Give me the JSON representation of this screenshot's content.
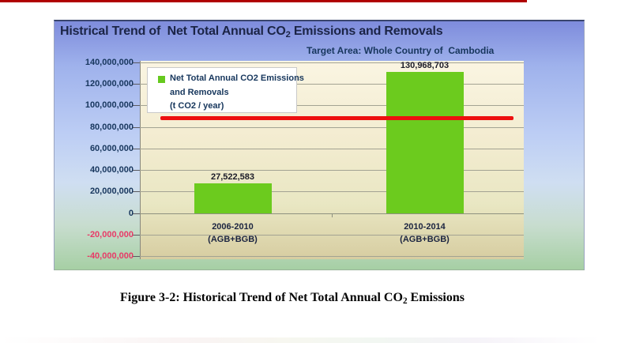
{
  "page": {
    "top_strip_color": "#b00000",
    "caption": {
      "pre": "Figure 3-2: Historical Trend of Net Total Annual CO",
      "sub": "2",
      "post": " Emissions"
    }
  },
  "chart": {
    "title": {
      "pre": "Histrical Trend of  Net Total Annual CO",
      "sub": "2",
      "post": " Emissions and Removals"
    },
    "legend": {
      "lines": [
        "Net Total Annual CO2 Emissions",
        "and Removals",
        "(t CO2 / year)"
      ],
      "swatch_color": "#66c91e"
    },
    "colors": {
      "bar": "#6ccb1e",
      "reference_line": "#ed0f0f",
      "positive_tick_label": "#17365d",
      "negative_tick_label": "#e83a67",
      "title_text": "#1b2446",
      "top_strip": "#b00000"
    }
  },
  "chart_data": {
    "type": "bar",
    "title": "Histrical Trend of  Net Total Annual CO2 Emissions and Removals",
    "subtitle": "Target Area: Whole Country of  Cambodia",
    "series_name": "Net Total Annual CO2 Emissions and Removals (t CO2 / year)",
    "categories": [
      {
        "line1": "2006-2010",
        "line2": "(AGB+BGB)"
      },
      {
        "line1": "2010-2014",
        "line2": "(AGB+BGB)"
      }
    ],
    "values": [
      27522583,
      130968703
    ],
    "value_labels": [
      "27,522,583",
      "130,968,703"
    ],
    "ylim": [
      -40000000,
      140000000
    ],
    "ytick_step": 20000000,
    "yticks": [
      {
        "value": 140000000,
        "label": "140,000,000"
      },
      {
        "value": 120000000,
        "label": "120,000,000"
      },
      {
        "value": 100000000,
        "label": "100,000,000"
      },
      {
        "value": 80000000,
        "label": "80,000,000"
      },
      {
        "value": 60000000,
        "label": "60,000,000"
      },
      {
        "value": 40000000,
        "label": "40,000,000"
      },
      {
        "value": 20000000,
        "label": "20,000,000"
      },
      {
        "value": 0,
        "label": "0"
      },
      {
        "value": -20000000,
        "label": "-20,000,000"
      },
      {
        "value": -40000000,
        "label": "-40,000,000"
      }
    ],
    "reference_line": {
      "value": 88500000,
      "color": "#ed0f0f",
      "label": ""
    },
    "bar_color": "#6ccb1e",
    "grid": true,
    "legend_position": "top-left",
    "xlabel": "",
    "ylabel": ""
  }
}
